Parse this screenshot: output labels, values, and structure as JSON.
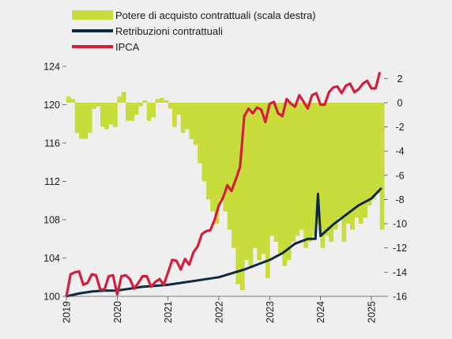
{
  "chart_data": {
    "type": "bar+line",
    "title": "",
    "xlabel": "",
    "y_left": {
      "ticks": [
        100,
        104,
        108,
        112,
        116,
        120,
        124
      ],
      "ylim": [
        100,
        124
      ]
    },
    "y_right": {
      "ticks": [
        2,
        0,
        -2,
        -4,
        -6,
        -8,
        -10,
        -12,
        -14,
        -16
      ],
      "ylim": [
        -16,
        3
      ]
    },
    "x_tick_labels": [
      "2019",
      "2020",
      "2021",
      "2022",
      "2023",
      "2024",
      "2025"
    ],
    "x_range": [
      2019.0,
      2025.25
    ],
    "grid": false,
    "legend_position": "top",
    "colors": {
      "background": "#efefef",
      "bars": "#c8dc3c",
      "retribuzioni": "#0c2a44",
      "ipca": "#d51e3b"
    },
    "series": [
      {
        "name": "Potere di acquisto contrattuali (scala destra)",
        "kind": "bar",
        "axis": "right",
        "x": [
          2019.0,
          2019.083,
          2019.167,
          2019.25,
          2019.333,
          2019.417,
          2019.5,
          2019.583,
          2019.667,
          2019.75,
          2019.833,
          2019.917,
          2020.0,
          2020.083,
          2020.167,
          2020.25,
          2020.333,
          2020.417,
          2020.5,
          2020.583,
          2020.667,
          2020.75,
          2020.833,
          2020.917,
          2021.0,
          2021.083,
          2021.167,
          2021.25,
          2021.333,
          2021.417,
          2021.5,
          2021.583,
          2021.667,
          2021.75,
          2021.833,
          2021.917,
          2022.0,
          2022.083,
          2022.167,
          2022.25,
          2022.333,
          2022.417,
          2022.5,
          2022.583,
          2022.667,
          2022.75,
          2022.833,
          2022.917,
          2023.0,
          2023.083,
          2023.167,
          2023.25,
          2023.333,
          2023.417,
          2023.5,
          2023.583,
          2023.667,
          2023.75,
          2023.833,
          2023.917,
          2024.0,
          2024.083,
          2024.167,
          2024.25,
          2024.333,
          2024.417,
          2024.5,
          2024.583,
          2024.667,
          2024.75,
          2024.833,
          2024.917,
          2025.0,
          2025.083,
          2025.167
        ],
        "values": [
          0.5,
          0.3,
          -2.5,
          -3.0,
          -3.0,
          -2.5,
          -0.5,
          -0.3,
          -2.0,
          -2.2,
          -1.8,
          -2.0,
          0.5,
          0.9,
          -1.5,
          -1.5,
          -1.0,
          -0.3,
          0.2,
          -1.5,
          -1.2,
          0.3,
          0.4,
          0.2,
          -0.5,
          -2.0,
          -1.0,
          -2.5,
          -2.2,
          -3.0,
          -3.5,
          -5.0,
          -6.5,
          -8.0,
          -9.0,
          -10.0,
          -8.0,
          -9.0,
          -10.5,
          -12.0,
          -15.0,
          -15.5,
          -13.0,
          -13.5,
          -12.0,
          -13.0,
          -12.5,
          -14.5,
          -11.0,
          -11.5,
          -12.5,
          -13.5,
          -13.0,
          -11.5,
          -11.0,
          -10.5,
          -12.0,
          -11.5,
          -11.0,
          -10.0,
          -12.0,
          -11.0,
          -11.5,
          -10.5,
          -9.5,
          -11.5,
          -10.0,
          -10.5,
          -9.5,
          -10.0,
          -9.5,
          -8.5,
          -8.0,
          -7.5,
          -10.5
        ]
      },
      {
        "name": "Retribuzioni contrattuali",
        "kind": "line",
        "axis": "left",
        "x": [
          2019.0,
          2019.25,
          2019.5,
          2019.75,
          2020.0,
          2020.25,
          2020.5,
          2020.75,
          2021.0,
          2021.25,
          2021.5,
          2021.75,
          2022.0,
          2022.25,
          2022.5,
          2022.75,
          2023.0,
          2023.25,
          2023.5,
          2023.75,
          2023.9,
          2023.95,
          2024.0,
          2024.25,
          2024.5,
          2024.75,
          2025.0,
          2025.2
        ],
        "values": [
          100.0,
          100.3,
          100.5,
          100.6,
          100.6,
          100.8,
          101.0,
          101.1,
          101.2,
          101.4,
          101.6,
          101.8,
          102.0,
          102.4,
          102.8,
          103.3,
          103.8,
          104.5,
          105.5,
          106.0,
          106.0,
          110.7,
          106.3,
          107.5,
          108.5,
          109.5,
          110.2,
          111.3
        ]
      },
      {
        "name": "IPCA",
        "kind": "line",
        "axis": "left",
        "x": [
          2019.0,
          2019.083,
          2019.167,
          2019.25,
          2019.333,
          2019.417,
          2019.5,
          2019.583,
          2019.667,
          2019.75,
          2019.833,
          2019.917,
          2020.0,
          2020.083,
          2020.167,
          2020.25,
          2020.333,
          2020.417,
          2020.5,
          2020.583,
          2020.667,
          2020.75,
          2020.833,
          2020.917,
          2021.0,
          2021.083,
          2021.167,
          2021.25,
          2021.333,
          2021.417,
          2021.5,
          2021.583,
          2021.667,
          2021.75,
          2021.833,
          2021.917,
          2022.0,
          2022.083,
          2022.167,
          2022.25,
          2022.333,
          2022.417,
          2022.5,
          2022.583,
          2022.667,
          2022.75,
          2022.833,
          2022.917,
          2023.0,
          2023.083,
          2023.167,
          2023.25,
          2023.333,
          2023.417,
          2023.5,
          2023.583,
          2023.667,
          2023.75,
          2023.833,
          2023.917,
          2024.0,
          2024.083,
          2024.167,
          2024.25,
          2024.333,
          2024.417,
          2024.5,
          2024.583,
          2024.667,
          2024.75,
          2024.833,
          2024.917,
          2025.0,
          2025.083,
          2025.167
        ],
        "values": [
          100.0,
          102.3,
          102.5,
          102.6,
          101.2,
          101.4,
          102.3,
          102.2,
          100.7,
          100.7,
          102.1,
          102.2,
          100.2,
          102.1,
          102.2,
          101.8,
          100.8,
          101.4,
          102.1,
          102.1,
          101.0,
          101.5,
          101.8,
          101.2,
          102.5,
          103.8,
          103.7,
          102.8,
          103.9,
          103.3,
          104.6,
          105.2,
          106.5,
          106.8,
          106.9,
          108.0,
          109.5,
          110.3,
          111.6,
          111.0,
          112.2,
          113.5,
          118.8,
          119.6,
          119.1,
          119.7,
          119.5,
          118.2,
          120.1,
          120.3,
          119.1,
          118.8,
          120.6,
          120.1,
          119.8,
          121.0,
          120.3,
          119.6,
          121.0,
          121.2,
          120.0,
          120.0,
          121.3,
          121.8,
          121.9,
          121.2,
          122.0,
          122.2,
          121.3,
          121.6,
          122.2,
          122.5,
          121.7,
          121.7,
          123.4
        ]
      }
    ]
  }
}
